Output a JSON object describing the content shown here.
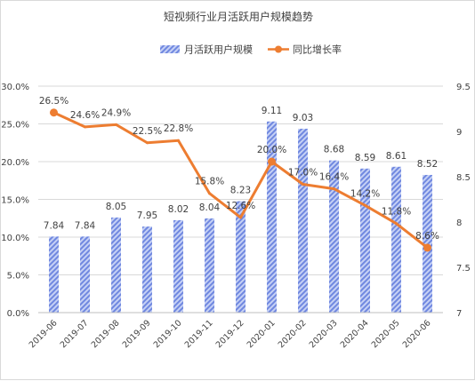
{
  "chart_data": {
    "type": "bar+line",
    "title": "短视频行业月活跃用户规模趋势",
    "categories": [
      "2019-06",
      "2019-07",
      "2019-08",
      "2019-09",
      "2019-10",
      "2019-11",
      "2019-12",
      "2020-01",
      "2020-02",
      "2020-03",
      "2020-04",
      "2020-05",
      "2020-06"
    ],
    "series": [
      {
        "name": "月活跃用户规模",
        "type": "bar",
        "axis": "right",
        "values": [
          7.84,
          7.84,
          8.05,
          7.95,
          8.02,
          8.04,
          8.23,
          9.11,
          9.03,
          8.68,
          8.59,
          8.61,
          8.52
        ],
        "labels": [
          "7.84",
          "7.84",
          "8.05",
          "7.95",
          "8.02",
          "8.04",
          "8.23",
          "9.11",
          "9.03",
          "8.68",
          "8.59",
          "8.61",
          "8.52"
        ],
        "color": "#8FA5EA"
      },
      {
        "name": "同比增长率",
        "type": "line",
        "axis": "left",
        "values": [
          26.5,
          24.6,
          24.9,
          22.5,
          22.8,
          15.8,
          12.6,
          20.0,
          17.0,
          16.4,
          14.2,
          11.8,
          8.6
        ],
        "labels": [
          "26.5%",
          "24.6%",
          "24.9%",
          "22.5%",
          "22.8%",
          "15.8%",
          "12.6%",
          "20.0%",
          "17.0%",
          "16.4%",
          "14.2%",
          "11.8%",
          "8.6%"
        ],
        "color": "#ED7D31"
      }
    ],
    "y_left": {
      "ylim": [
        0,
        30
      ],
      "ticks": [
        "0.0%",
        "5.0%",
        "10.0%",
        "15.0%",
        "20.0%",
        "25.0%",
        "30.0%"
      ]
    },
    "y_right": {
      "ylim": [
        7,
        9.5
      ],
      "ticks": [
        "7",
        "7.5",
        "8",
        "8.5",
        "9",
        "9.5"
      ]
    },
    "grid": true,
    "legend_position": "top"
  }
}
